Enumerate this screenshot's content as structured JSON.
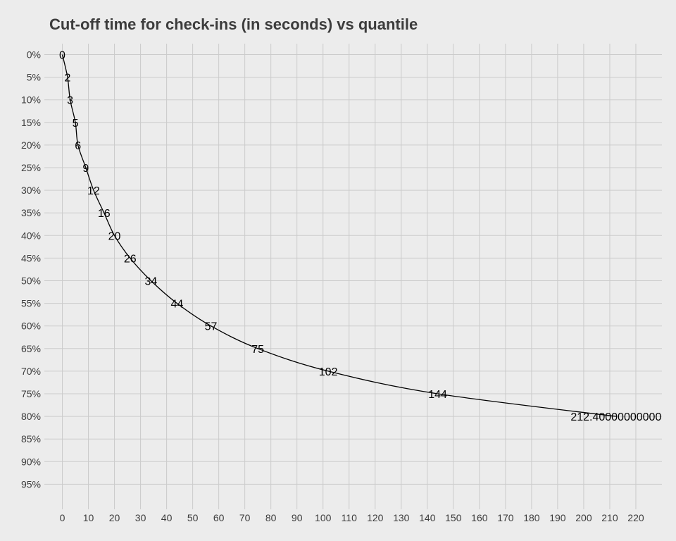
{
  "chart_data": {
    "type": "line",
    "title": "Cut-off time for check-ins (in seconds) vs quantile",
    "xlabel": "",
    "ylabel": "",
    "xlim": [
      -5,
      230
    ],
    "x_ticks": [
      "0",
      "10",
      "20",
      "30",
      "40",
      "50",
      "60",
      "70",
      "80",
      "90",
      "100",
      "110",
      "120",
      "130",
      "140",
      "150",
      "160",
      "170",
      "180",
      "190",
      "200",
      "210",
      "220"
    ],
    "y_ticks": [
      "0%",
      "5%",
      "10%",
      "15%",
      "20%",
      "25%",
      "30%",
      "35%",
      "40%",
      "45%",
      "50%",
      "55%",
      "60%",
      "65%",
      "70%",
      "75%",
      "80%",
      "85%",
      "90%",
      "95%"
    ],
    "y_reversed": true,
    "grid": true,
    "series": [
      {
        "points": [
          {
            "quantile": 0,
            "x": 0,
            "label": "0"
          },
          {
            "quantile": 5,
            "x": 2,
            "label": "2"
          },
          {
            "quantile": 10,
            "x": 3,
            "label": "3"
          },
          {
            "quantile": 15,
            "x": 5,
            "label": "5"
          },
          {
            "quantile": 20,
            "x": 6,
            "label": "6"
          },
          {
            "quantile": 25,
            "x": 9,
            "label": "9"
          },
          {
            "quantile": 30,
            "x": 12,
            "label": "12"
          },
          {
            "quantile": 35,
            "x": 16,
            "label": "16"
          },
          {
            "quantile": 40,
            "x": 20,
            "label": "20"
          },
          {
            "quantile": 45,
            "x": 26,
            "label": "26"
          },
          {
            "quantile": 50,
            "x": 34,
            "label": "34"
          },
          {
            "quantile": 55,
            "x": 44,
            "label": "44"
          },
          {
            "quantile": 60,
            "x": 57,
            "label": "57"
          },
          {
            "quantile": 65,
            "x": 75,
            "label": "75"
          },
          {
            "quantile": 70,
            "x": 102,
            "label": "102"
          },
          {
            "quantile": 75,
            "x": 144,
            "label": "144"
          },
          {
            "quantile": 80,
            "x": 212.4,
            "label": "212.40000000000"
          }
        ]
      }
    ]
  },
  "colors": {
    "background": "#ececec",
    "grid": "#cbcbcb",
    "line": "#000000",
    "text": "#3c3c3c"
  }
}
